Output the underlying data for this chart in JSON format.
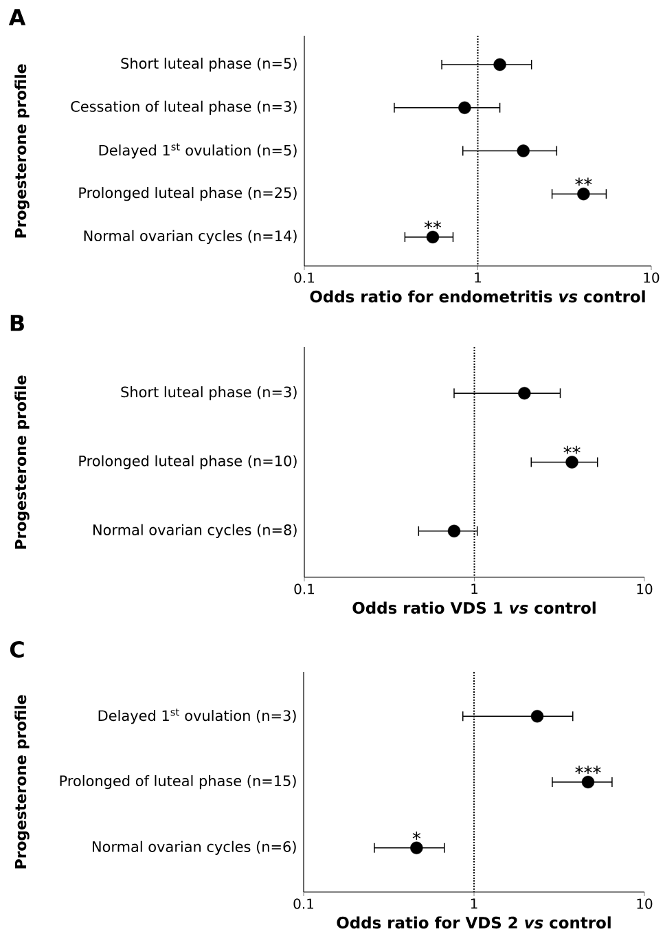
{
  "chart_data": [
    {
      "type": "scatter",
      "orientation": "horizontal",
      "title": "A",
      "ylabel": "Progesterone profile",
      "xlabel": "Odds ratio for endometritis *vs* control",
      "categories": [
        "Short luteal phase (n=5)",
        "Cessation of luteal phase (n=3)",
        "Delayed 1$^{st}$ ovulation (n=5)",
        "Prolonged luteal phase (n=25)",
        "Normal ovarian cycles (n=14)"
      ],
      "values": [
        1.34,
        0.84,
        1.83,
        4.07,
        0.55
      ],
      "errors": [
        [
          0.62,
          2.04
        ],
        [
          0.33,
          1.34
        ],
        [
          0.82,
          2.85
        ],
        [
          2.68,
          5.5
        ],
        [
          0.38,
          0.72
        ]
      ],
      "color": "#000000",
      "marker": "circle",
      "log": "x",
      "xlim": [
        0.1,
        10
      ],
      "xticks": [
        0.1,
        1,
        10
      ],
      "ref_lines": [
        {
          "axis": "x",
          "value": 1,
          "line_style": "dotted",
          "color": "#000000"
        }
      ],
      "annotations": [
        {
          "text": "**",
          "x": 4.07,
          "y": "Prolonged luteal phase (n=25)"
        },
        {
          "text": "**",
          "x": 0.55,
          "y": "Normal ovarian cycles (n=14)"
        }
      ]
    },
    {
      "type": "scatter",
      "orientation": "horizontal",
      "title": "B",
      "ylabel": "Progesterone profile",
      "xlabel": "Odds ratio VDS 1 *vs* control",
      "categories": [
        "Short luteal phase (n=3)",
        "Prolonged luteal phase (n=10)",
        "Normal ovarian cycles (n=8)"
      ],
      "values": [
        1.97,
        3.75,
        0.76
      ],
      "errors": [
        [
          0.76,
          3.2
        ],
        [
          2.16,
          5.3
        ],
        [
          0.47,
          1.04
        ]
      ],
      "color": "#000000",
      "marker": "circle",
      "log": "x",
      "xlim": [
        0.1,
        10
      ],
      "xticks": [
        0.1,
        1,
        10
      ],
      "ref_lines": [
        {
          "axis": "x",
          "value": 1,
          "line_style": "dotted",
          "color": "#000000"
        }
      ],
      "annotations": [
        {
          "text": "**",
          "x": 3.75,
          "y": "Prolonged luteal phase (n=10)"
        }
      ]
    },
    {
      "type": "scatter",
      "orientation": "horizontal",
      "title": "C",
      "ylabel": "Progesterone profile",
      "xlabel": "Odds ratio for VDS 2 *vs* control",
      "categories": [
        "Delayed 1$^{st}$ ovulation (n=3)",
        "Prolonged of luteal phase (n=15)",
        "Normal ovarian cycles (n=6)"
      ],
      "values": [
        2.35,
        4.67,
        0.46
      ],
      "errors": [
        [
          0.86,
          3.8
        ],
        [
          2.88,
          6.46
        ],
        [
          0.26,
          0.67
        ]
      ],
      "color": "#000000",
      "marker": "circle",
      "log": "x",
      "xlim": [
        0.1,
        10
      ],
      "xticks": [
        0.1,
        1,
        10
      ],
      "ref_lines": [
        {
          "axis": "x",
          "value": 1,
          "line_style": "dotted",
          "color": "#000000"
        }
      ],
      "annotations": [
        {
          "text": "***",
          "x": 4.67,
          "y": "Prolonged of luteal phase (n=15)"
        },
        {
          "text": "*",
          "x": 0.46,
          "y": "Normal ovarian cycles (n=6)"
        }
      ]
    }
  ]
}
